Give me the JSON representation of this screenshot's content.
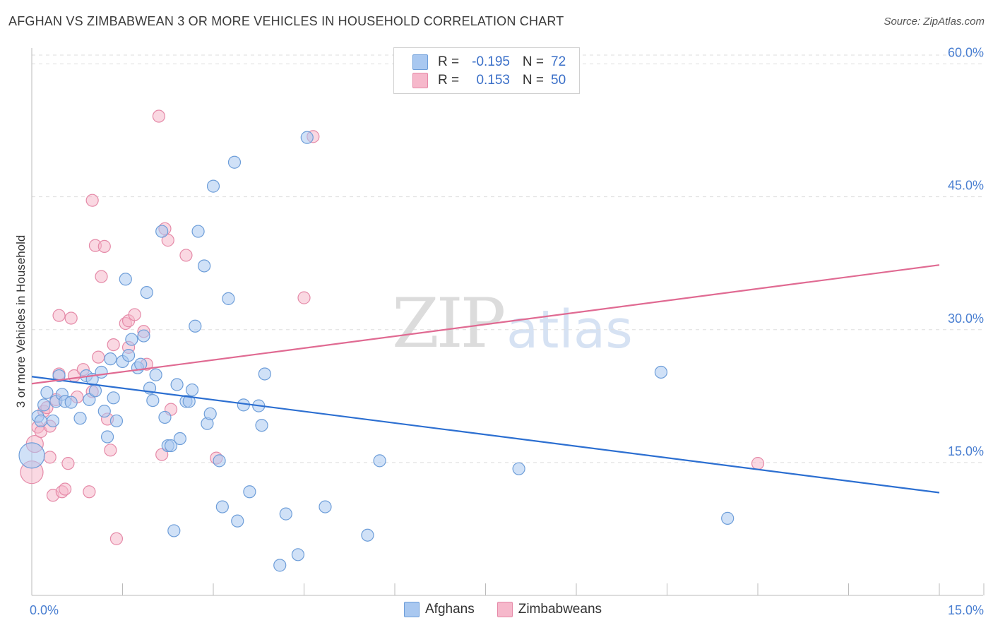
{
  "header": {
    "title": "AFGHAN VS ZIMBABWEAN 3 OR MORE VEHICLES IN HOUSEHOLD CORRELATION CHART",
    "source": "Source: ZipAtlas.com"
  },
  "watermark": {
    "zip": "ZIP",
    "atlas": "atlas"
  },
  "legend_top": {
    "rows": [
      {
        "r_label": "R =",
        "r_value": "-0.195",
        "n_label": "N =",
        "n_value": "72",
        "color": "#a9c8f0"
      },
      {
        "r_label": "R =",
        "r_value": "0.153",
        "n_label": "N =",
        "n_value": "50",
        "color": "#f6b8cb"
      }
    ]
  },
  "legend_bottom": {
    "afghans": "Afghans",
    "zimbabweans": "Zimbabweans"
  },
  "colors": {
    "afghan_fill": "#a9c8f0",
    "afghan_stroke": "#6e9ed9",
    "afghan_line": "#2c6fd1",
    "zim_fill": "#f6b8cb",
    "zim_stroke": "#e58aa8",
    "zim_line": "#e06a92",
    "tick": "#4a7fd1",
    "grid": "#dddddd"
  },
  "chart_data": {
    "type": "scatter",
    "title": "AFGHAN VS ZIMBABWEAN 3 OR MORE VEHICLES IN HOUSEHOLD CORRELATION CHART",
    "xlabel": "",
    "ylabel": "3 or more Vehicles in Household",
    "xlim": [
      0,
      15
    ],
    "ylim": [
      0,
      61
    ],
    "y_ticks": [
      {
        "value": 15,
        "label": "15.0%"
      },
      {
        "value": 30,
        "label": "30.0%"
      },
      {
        "value": 45,
        "label": "45.0%"
      },
      {
        "value": 60,
        "label": "60.0%"
      }
    ],
    "x_ticks_labels": [
      {
        "value": 0,
        "label": "0.0%"
      },
      {
        "value": 15,
        "label": "15.0%"
      }
    ],
    "x_minor_ticks": [
      1.5,
      3.0,
      4.5,
      6.0,
      7.5,
      9.0,
      10.5,
      12.0,
      13.5,
      15.0
    ],
    "series": [
      {
        "name": "Afghans",
        "r": -0.195,
        "n": 72,
        "trend": {
          "x": [
            0,
            15
          ],
          "y": [
            24.7,
            11.6
          ]
        },
        "points": [
          [
            0.0,
            15.8,
            18
          ],
          [
            0.1,
            20.2,
            10
          ],
          [
            0.15,
            19.7,
            10
          ],
          [
            0.2,
            21.5,
            10
          ],
          [
            0.25,
            22.9,
            10
          ],
          [
            0.35,
            19.7,
            10
          ],
          [
            0.4,
            21.9,
            10
          ],
          [
            0.45,
            24.8,
            10
          ],
          [
            0.5,
            22.7,
            10
          ],
          [
            0.55,
            21.9,
            10
          ],
          [
            0.65,
            21.8,
            10
          ],
          [
            0.8,
            20.0,
            10
          ],
          [
            0.9,
            24.8,
            10
          ],
          [
            0.95,
            22.1,
            10
          ],
          [
            1.0,
            24.4,
            10
          ],
          [
            1.05,
            23.1,
            10
          ],
          [
            1.15,
            25.2,
            10
          ],
          [
            1.2,
            20.8,
            10
          ],
          [
            1.25,
            17.9,
            10
          ],
          [
            1.3,
            26.7,
            10
          ],
          [
            1.35,
            22.3,
            10
          ],
          [
            1.4,
            19.7,
            10
          ],
          [
            1.5,
            26.4,
            10
          ],
          [
            1.55,
            35.7,
            10
          ],
          [
            1.6,
            27.1,
            10
          ],
          [
            1.65,
            28.9,
            10
          ],
          [
            1.75,
            25.7,
            10
          ],
          [
            1.8,
            26.1,
            10
          ],
          [
            1.85,
            29.3,
            10
          ],
          [
            1.9,
            34.2,
            10
          ],
          [
            1.95,
            23.4,
            10
          ],
          [
            2.0,
            22.0,
            10
          ],
          [
            2.05,
            24.9,
            10
          ],
          [
            2.15,
            41.1,
            10
          ],
          [
            2.2,
            20.1,
            10
          ],
          [
            2.25,
            16.9,
            10
          ],
          [
            2.3,
            16.9,
            10
          ],
          [
            2.35,
            7.3,
            10
          ],
          [
            2.4,
            23.8,
            10
          ],
          [
            2.45,
            17.7,
            10
          ],
          [
            2.55,
            21.9,
            10
          ],
          [
            2.6,
            21.9,
            10
          ],
          [
            2.65,
            23.2,
            10
          ],
          [
            2.7,
            30.4,
            10
          ],
          [
            2.75,
            41.1,
            10
          ],
          [
            2.85,
            37.2,
            10
          ],
          [
            2.9,
            19.4,
            10
          ],
          [
            2.95,
            20.5,
            10
          ],
          [
            3.0,
            46.2,
            10
          ],
          [
            3.1,
            15.2,
            10
          ],
          [
            3.15,
            10.0,
            10
          ],
          [
            3.25,
            33.5,
            10
          ],
          [
            3.35,
            48.9,
            10
          ],
          [
            3.4,
            8.4,
            10
          ],
          [
            3.5,
            21.5,
            10
          ],
          [
            3.6,
            11.7,
            10
          ],
          [
            3.75,
            21.4,
            10
          ],
          [
            3.8,
            19.2,
            10
          ],
          [
            3.85,
            25.0,
            10
          ],
          [
            4.1,
            3.4,
            10
          ],
          [
            4.2,
            9.2,
            10
          ],
          [
            4.4,
            4.6,
            10
          ],
          [
            4.55,
            51.7,
            10
          ],
          [
            4.85,
            10.0,
            10
          ],
          [
            5.55,
            6.8,
            10
          ],
          [
            5.75,
            15.2,
            10
          ],
          [
            8.05,
            14.3,
            10
          ],
          [
            10.4,
            25.2,
            10
          ],
          [
            11.5,
            8.7,
            10
          ]
        ]
      },
      {
        "name": "Zimbabweans",
        "r": 0.153,
        "n": 50,
        "trend": {
          "x": [
            0,
            15
          ],
          "y": [
            23.9,
            37.3
          ]
        },
        "points": [
          [
            0.0,
            13.9,
            16
          ],
          [
            0.05,
            17.1,
            12
          ],
          [
            0.1,
            19.0,
            10
          ],
          [
            0.15,
            18.5,
            10
          ],
          [
            0.2,
            20.8,
            10
          ],
          [
            0.25,
            21.2,
            10
          ],
          [
            0.3,
            19.1,
            10
          ],
          [
            0.3,
            15.6,
            10
          ],
          [
            0.35,
            11.3,
            10
          ],
          [
            0.4,
            22.1,
            10
          ],
          [
            0.45,
            25.0,
            10
          ],
          [
            0.45,
            31.6,
            10
          ],
          [
            0.5,
            11.7,
            10
          ],
          [
            0.55,
            12.0,
            10
          ],
          [
            0.6,
            14.9,
            10
          ],
          [
            0.65,
            31.3,
            10
          ],
          [
            0.7,
            24.8,
            10
          ],
          [
            0.75,
            22.4,
            10
          ],
          [
            0.85,
            25.5,
            10
          ],
          [
            0.95,
            11.7,
            10
          ],
          [
            1.0,
            23.0,
            10
          ],
          [
            1.0,
            44.6,
            10
          ],
          [
            1.05,
            39.5,
            10
          ],
          [
            1.1,
            26.9,
            10
          ],
          [
            1.15,
            36.0,
            10
          ],
          [
            1.2,
            39.4,
            10
          ],
          [
            1.25,
            19.9,
            10
          ],
          [
            1.3,
            16.4,
            10
          ],
          [
            1.35,
            28.3,
            10
          ],
          [
            1.4,
            6.4,
            10
          ],
          [
            1.55,
            30.7,
            10
          ],
          [
            1.6,
            28.0,
            10
          ],
          [
            1.6,
            31.0,
            10
          ],
          [
            1.7,
            31.7,
            10
          ],
          [
            1.85,
            29.8,
            10
          ],
          [
            1.9,
            26.1,
            10
          ],
          [
            2.1,
            54.1,
            10
          ],
          [
            2.15,
            15.9,
            10
          ],
          [
            2.2,
            41.4,
            10
          ],
          [
            2.25,
            40.1,
            10
          ],
          [
            2.3,
            21.0,
            10
          ],
          [
            2.55,
            38.4,
            10
          ],
          [
            3.05,
            15.5,
            10
          ],
          [
            4.5,
            33.6,
            10
          ],
          [
            4.65,
            51.8,
            10
          ],
          [
            12.0,
            14.9,
            10
          ]
        ]
      }
    ]
  }
}
